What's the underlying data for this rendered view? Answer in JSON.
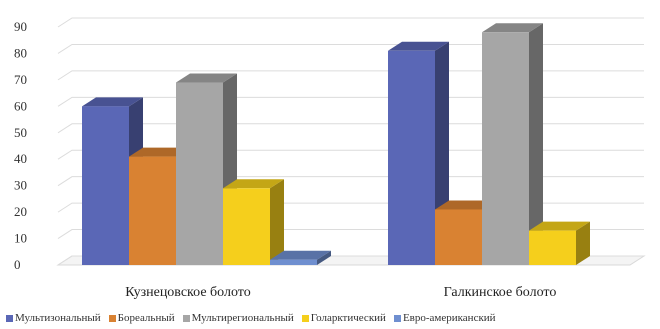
{
  "chart_data": {
    "type": "bar",
    "style": "3d-clustered-column",
    "categories": [
      "Кузнецовское болото",
      "Галкинское болото"
    ],
    "series": [
      {
        "name": "Мультизональный",
        "color": "#5a67b6",
        "values": [
          60,
          81
        ]
      },
      {
        "name": "Бореальный",
        "color": "#d98232",
        "values": [
          41,
          21
        ]
      },
      {
        "name": "Мультирегиональный",
        "color": "#a6a6a6",
        "values": [
          69,
          88
        ]
      },
      {
        "name": "Голарктический",
        "color": "#f5cf1c",
        "values": [
          29,
          13
        ]
      },
      {
        "name": "Евро-американский",
        "color": "#6f8fd0",
        "values": [
          2,
          0
        ]
      }
    ],
    "yticks": [
      "0",
      "10",
      "20",
      "30",
      "40",
      "50",
      "60",
      "70",
      "80",
      "90"
    ],
    "ylim": [
      0,
      90
    ],
    "grid": true,
    "legend_position": "bottom"
  }
}
